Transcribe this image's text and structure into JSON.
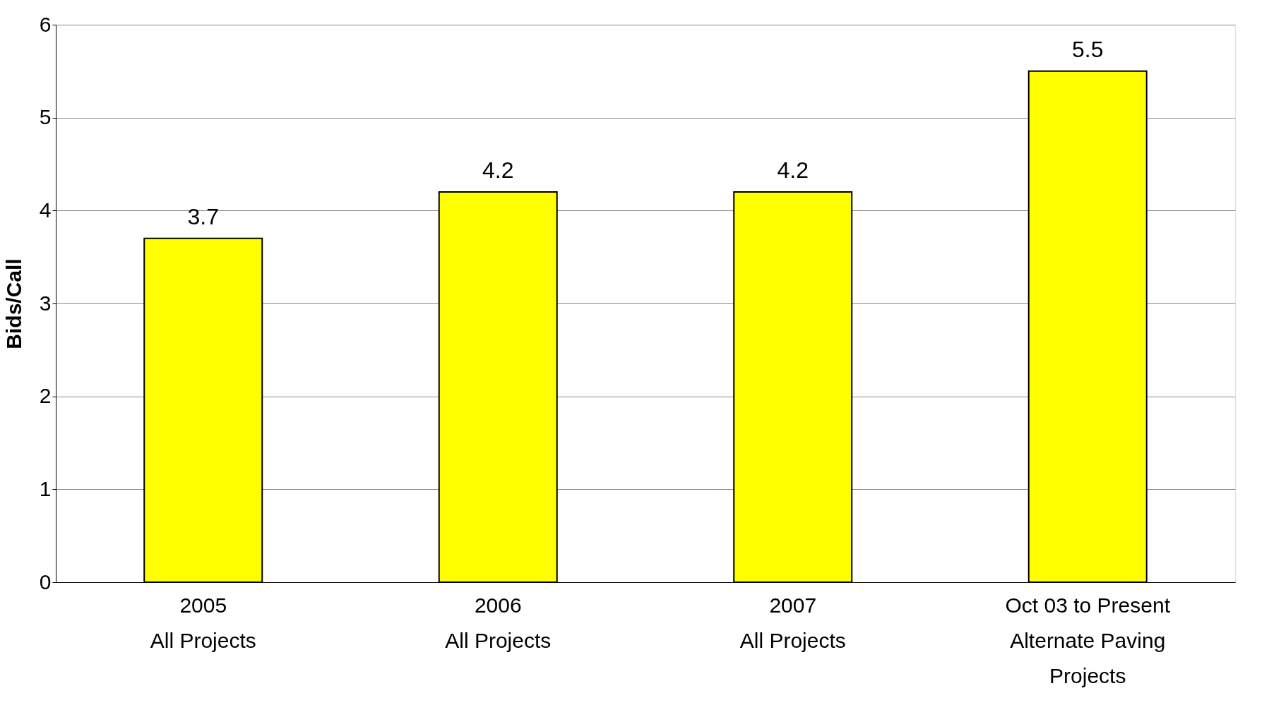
{
  "chart_data": {
    "type": "bar",
    "ylabel": "Bids/Call",
    "categories": [
      "2005\nAll Projects",
      "2006\nAll Projects",
      "2007\nAll Projects",
      "Oct 03 to Present\nAlternate Paving\nProjects"
    ],
    "values": [
      3.7,
      4.2,
      4.2,
      5.5
    ],
    "color": "#ffff00",
    "ylim": [
      0,
      6
    ],
    "yticks": [
      0,
      1,
      2,
      3,
      4,
      5,
      6
    ],
    "grid": "y",
    "data_labels": true
  }
}
